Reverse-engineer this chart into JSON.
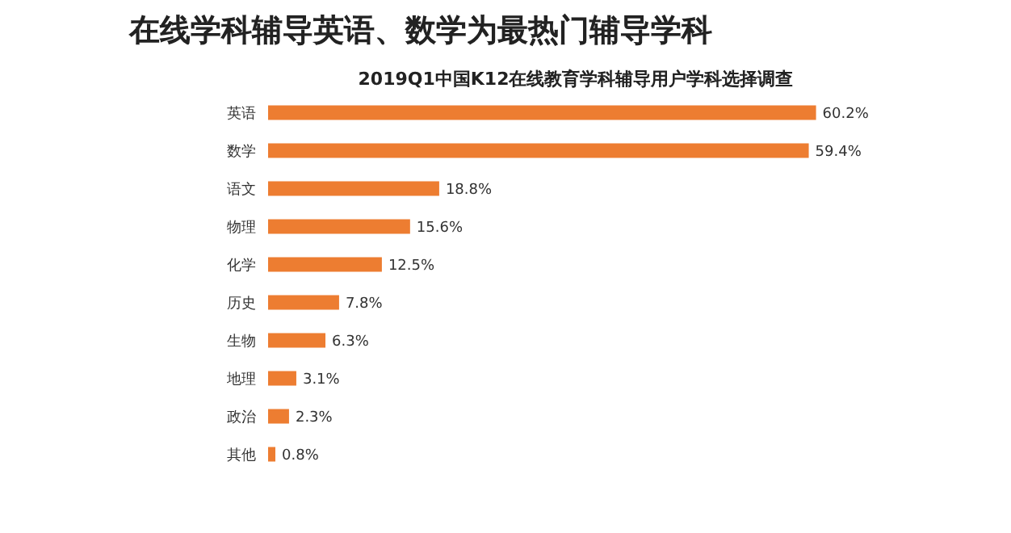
{
  "chart_data": {
    "type": "bar",
    "orientation": "horizontal",
    "title": "在线学科辅导英语、数学为最热门辅导学科",
    "subtitle": "2019Q1中国K12在线教育学科辅导用户学科选择调查",
    "categories": [
      "英语",
      "数学",
      "语文",
      "物理",
      "化学",
      "历史",
      "生物",
      "地理",
      "政治",
      "其他"
    ],
    "values": [
      60.2,
      59.4,
      18.8,
      15.6,
      12.5,
      7.8,
      6.3,
      3.1,
      2.3,
      0.8
    ],
    "value_labels": [
      "60.2%",
      "59.4%",
      "18.8%",
      "15.6%",
      "12.5%",
      "7.8%",
      "6.3%",
      "3.1%",
      "2.3%",
      "0.8%"
    ],
    "color": "#ed7d31",
    "grid": false
  }
}
